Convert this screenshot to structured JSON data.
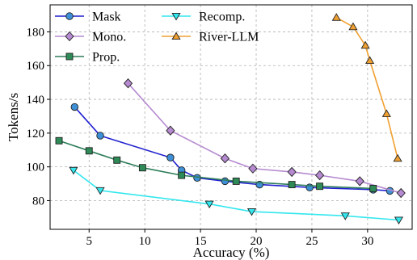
{
  "chart_data": {
    "type": "line",
    "xlabel": "Accuracy (%)",
    "ylabel": "Tokens/s",
    "xlim": [
      1.5,
      34
    ],
    "ylim": [
      63,
      196
    ],
    "xticks": [
      5,
      10,
      15,
      20,
      25,
      30
    ],
    "yticks": [
      80,
      100,
      120,
      140,
      160,
      180
    ],
    "grid": true,
    "legend_position": "top-left",
    "series": [
      {
        "name": "Mask",
        "color": "#1f1fcf",
        "marker_fill": "#3d8fd6",
        "marker": "circle",
        "points": [
          [
            3.7,
            135.5
          ],
          [
            6.0,
            118.5
          ],
          [
            12.3,
            105.5
          ],
          [
            13.3,
            98
          ],
          [
            14.7,
            93.5
          ],
          [
            17.2,
            91.5
          ],
          [
            20.3,
            89.5
          ],
          [
            24.8,
            87.8
          ],
          [
            30.5,
            86.5
          ],
          [
            32.0,
            85.8
          ]
        ]
      },
      {
        "name": "Mono.",
        "color": "#b58ad0",
        "marker_fill": "#b58ad0",
        "marker": "diamond",
        "points": [
          [
            8.5,
            149.5
          ],
          [
            12.3,
            121.5
          ],
          [
            17.2,
            105
          ],
          [
            19.7,
            99
          ],
          [
            23.2,
            97
          ],
          [
            25.7,
            95
          ],
          [
            29.3,
            91.5
          ],
          [
            33.0,
            84.5
          ]
        ]
      },
      {
        "name": "Prop.",
        "color": "#2e7d5b",
        "marker_fill": "#2e8b57",
        "marker": "square",
        "points": [
          [
            2.3,
            115.5
          ],
          [
            5.0,
            109.5
          ],
          [
            7.5,
            104
          ],
          [
            9.8,
            99.5
          ],
          [
            13.3,
            95
          ],
          [
            18.2,
            91.5
          ],
          [
            23.2,
            89.5
          ],
          [
            25.7,
            88.5
          ],
          [
            30.5,
            87.2
          ]
        ]
      },
      {
        "name": "Recomp.",
        "color": "#33e7ee",
        "marker_fill": "#33e7ee",
        "marker": "triangle-down",
        "points": [
          [
            3.6,
            98
          ],
          [
            6.0,
            86
          ],
          [
            15.8,
            78
          ],
          [
            19.6,
            73.5
          ],
          [
            28.0,
            71
          ],
          [
            32.8,
            68.5
          ]
        ]
      },
      {
        "name": "River-LLM",
        "color": "#f0a030",
        "marker_fill": "#f0a030",
        "marker": "triangle-up",
        "points": [
          [
            27.2,
            188.5
          ],
          [
            28.7,
            183
          ],
          [
            29.8,
            172
          ],
          [
            30.2,
            163
          ],
          [
            31.7,
            131.5
          ],
          [
            32.7,
            105
          ]
        ]
      }
    ]
  }
}
